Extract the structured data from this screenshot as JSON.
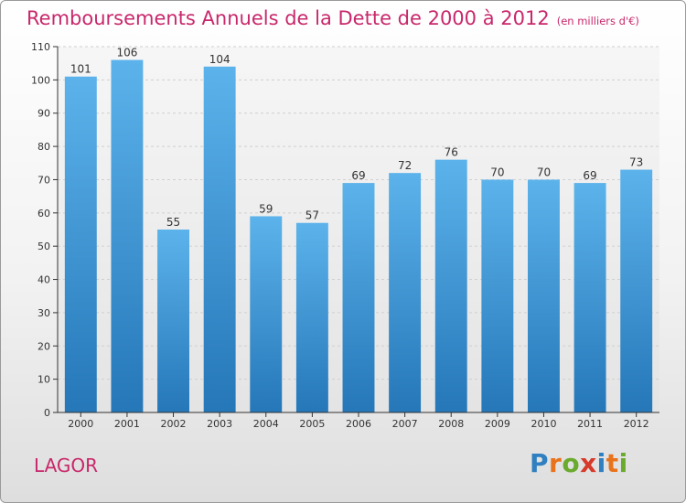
{
  "title": "Remboursements Annuels de la Dette de 2000 à 2012",
  "subtitle": "(en milliers d'€)",
  "commune": "LAGOR",
  "brand": {
    "letters": [
      "P",
      "r",
      "o",
      "x",
      "i",
      "t",
      "i"
    ],
    "colors": [
      "#2f7fc1",
      "#e8731c",
      "#6aaa2c",
      "#d63a2a",
      "#2f7fc1",
      "#e8731c",
      "#6aaa2c"
    ]
  },
  "colors": {
    "title": "#c8286b",
    "bar_top": "#5cb3eb",
    "bar_bottom": "#2577b8",
    "grid": "#d0d0d0",
    "axis": "#333333"
  },
  "chart_data": {
    "type": "bar",
    "categories": [
      "2000",
      "2001",
      "2002",
      "2003",
      "2004",
      "2005",
      "2006",
      "2007",
      "2008",
      "2009",
      "2010",
      "2011",
      "2012"
    ],
    "values": [
      101,
      106,
      55,
      104,
      59,
      57,
      69,
      72,
      76,
      70,
      70,
      69,
      73
    ],
    "ylim": [
      0,
      110
    ],
    "yticks": [
      0,
      10,
      20,
      30,
      40,
      50,
      60,
      70,
      80,
      90,
      100,
      110
    ],
    "grid": true,
    "data_labels": true
  }
}
